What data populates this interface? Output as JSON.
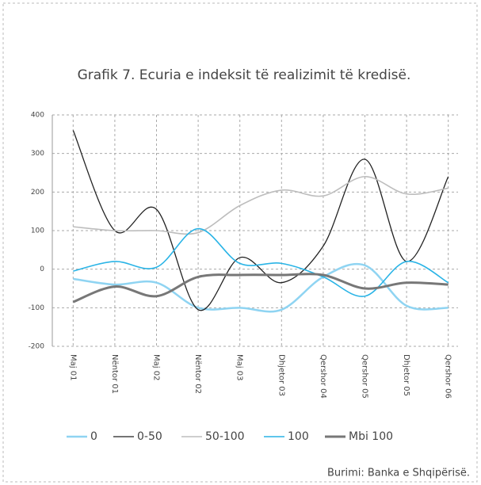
{
  "chart_data": {
    "type": "line",
    "title": "Grafik 7. Ecuria e indeksit të realizimit të kredisë.",
    "source": "Burimi: Banka e Shqipërisë.",
    "categories": [
      "Maj 01",
      "Nëntor 01",
      "Maj 02",
      "Nëntor 02",
      "Maj 03",
      "Dhjetor 03",
      "Qershor 04",
      "Qershor 05",
      "Dhjetor 05",
      "Qershor 06"
    ],
    "series": [
      {
        "name": "0",
        "color": "#8fd4f2",
        "width": 2.5,
        "values": [
          -25,
          -40,
          -35,
          -100,
          -100,
          -105,
          -20,
          10,
          -95,
          -100
        ]
      },
      {
        "name": "0-50",
        "color": "#222222",
        "width": 1.3,
        "values": [
          360,
          100,
          155,
          -105,
          30,
          -35,
          60,
          285,
          20,
          240
        ]
      },
      {
        "name": "50-100",
        "color": "#bdbdbd",
        "width": 1.6,
        "values": [
          110,
          100,
          100,
          95,
          165,
          205,
          190,
          240,
          195,
          210
        ]
      },
      {
        "name": "100",
        "color": "#2ab4e6",
        "width": 1.6,
        "values": [
          -5,
          20,
          5,
          105,
          15,
          15,
          -20,
          -70,
          20,
          -35
        ]
      },
      {
        "name": "Mbi 100",
        "color": "#777777",
        "width": 3,
        "values": [
          -85,
          -45,
          -70,
          -20,
          -15,
          -15,
          -15,
          -50,
          -35,
          -40
        ]
      }
    ],
    "ylim": [
      -200,
      400
    ],
    "yticks": [
      -200,
      -100,
      0,
      100,
      200,
      300,
      400
    ],
    "grid": true
  }
}
